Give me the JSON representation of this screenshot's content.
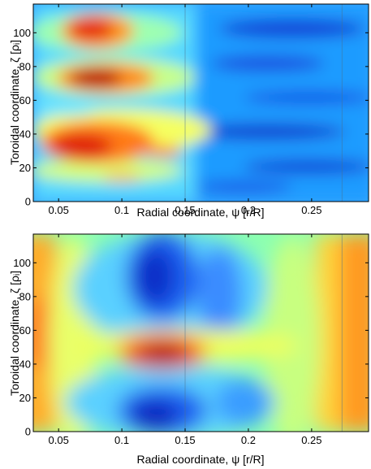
{
  "chart_data": [
    {
      "type": "heatmap",
      "title": "",
      "xlabel": "Radial coordinate, ψ [r/R]",
      "ylabel": "Toroidal coordinate, ζ [ρᵢ]",
      "xlim": [
        0.03,
        0.295
      ],
      "ylim": [
        0,
        117
      ],
      "xticks": [
        0.05,
        0.1,
        0.15,
        0.2,
        0.25
      ],
      "xtick_labels": [
        "0.05",
        "0.1",
        "0.15",
        "0.2",
        "0.25"
      ],
      "yticks": [
        0,
        20,
        40,
        60,
        80,
        100
      ],
      "ytick_labels": [
        "0",
        "20",
        "40",
        "60",
        "80",
        "100"
      ],
      "grid": false,
      "colormap": "jet",
      "ref_lines_x": [
        0.15,
        0.274
      ],
      "features": [
        {
          "x": 0.065,
          "y": 103,
          "value": 0.82
        },
        {
          "x": 0.075,
          "y": 74,
          "value": 0.95
        },
        {
          "x": 0.07,
          "y": 35,
          "value": 0.88
        },
        {
          "x": 0.1,
          "y": 38,
          "value": 0.7
        },
        {
          "x": 0.13,
          "y": 30,
          "value": 0.72
        },
        {
          "x": 0.095,
          "y": 14,
          "value": 0.6
        },
        {
          "x": 0.21,
          "y": 100,
          "value": 0.08
        },
        {
          "x": 0.22,
          "y": 80,
          "value": 0.1
        },
        {
          "x": 0.25,
          "y": 65,
          "value": 0.12
        },
        {
          "x": 0.21,
          "y": 38,
          "value": 0.08
        },
        {
          "x": 0.25,
          "y": 20,
          "value": 0.1
        }
      ]
    },
    {
      "type": "heatmap",
      "title": "",
      "xlabel": "Radial coordinate, ψ [r/R]",
      "ylabel": "Toroidal coordinate, ζ [ρᵢ]",
      "xlim": [
        0.03,
        0.295
      ],
      "ylim": [
        0,
        117
      ],
      "xticks": [
        0.05,
        0.1,
        0.15,
        0.2,
        0.25
      ],
      "xtick_labels": [
        "0.05",
        "0.1",
        "0.15",
        "0.2",
        "0.25"
      ],
      "yticks": [
        0,
        20,
        40,
        60,
        80,
        100
      ],
      "ytick_labels": [
        "0",
        "20",
        "40",
        "60",
        "80",
        "100"
      ],
      "grid": false,
      "colormap": "jet",
      "ref_lines_x": [
        0.15,
        0.274
      ],
      "features": [
        {
          "x": 0.13,
          "y": 42,
          "value": 0.97
        },
        {
          "x": 0.04,
          "y": 55,
          "value": 0.78
        },
        {
          "x": 0.285,
          "y": 55,
          "value": 0.8
        },
        {
          "x": 0.13,
          "y": 98,
          "value": 0.06
        },
        {
          "x": 0.14,
          "y": 6,
          "value": 0.06
        },
        {
          "x": 0.2,
          "y": 90,
          "value": 0.28
        },
        {
          "x": 0.2,
          "y": 15,
          "value": 0.3
        }
      ]
    }
  ]
}
